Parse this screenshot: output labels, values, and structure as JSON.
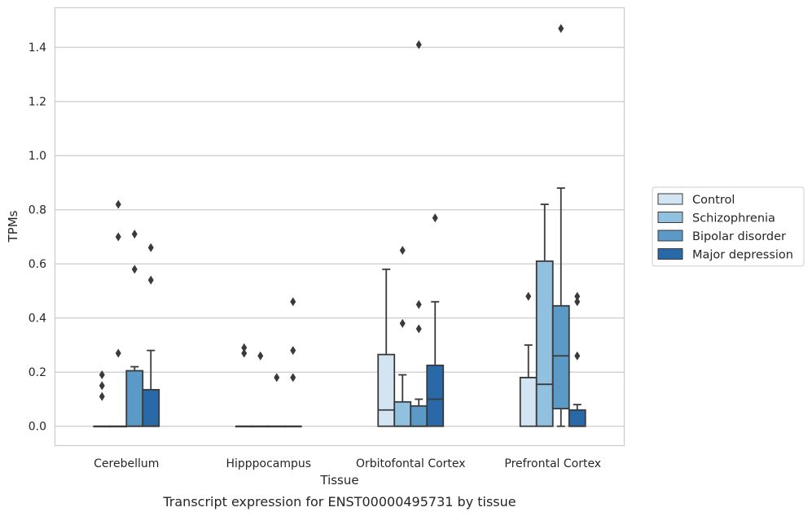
{
  "chart_data": {
    "type": "box",
    "caption": "Transcript expression for ENST00000495731 by tissue",
    "xlabel": "Tissue",
    "ylabel": "TPMs",
    "ylim": [
      -0.07,
      1.545
    ],
    "yticks": [
      "0.0",
      "0.2",
      "0.4",
      "0.6",
      "0.8",
      "1.0",
      "1.2",
      "1.4"
    ],
    "categories": [
      "Cerebellum",
      "Hipppocampus",
      "Orbitofontal Cortex",
      "Prefrontal Cortex"
    ],
    "grid": true,
    "legend_position": "right",
    "series": [
      {
        "name": "Control",
        "color": "#d3e4f3",
        "boxes": [
          {
            "q1": 0,
            "median": 0,
            "q3": 0,
            "whisker_low": 0,
            "whisker_high": 0,
            "outliers": [
              0.19,
              0.15,
              0.11
            ]
          },
          {
            "q1": 0,
            "median": 0,
            "q3": 0,
            "whisker_low": 0,
            "whisker_high": 0,
            "outliers": [
              0.29,
              0.27
            ]
          },
          {
            "q1": 0,
            "median": 0.06,
            "q3": 0.265,
            "whisker_low": 0,
            "whisker_high": 0.58,
            "outliers": []
          },
          {
            "q1": 0,
            "median": 0.18,
            "q3": 0.18,
            "whisker_low": 0,
            "whisker_high": 0.3,
            "outliers": [
              0.48
            ]
          }
        ]
      },
      {
        "name": "Schizophrenia",
        "color": "#92c0df",
        "boxes": [
          {
            "q1": 0,
            "median": 0,
            "q3": 0,
            "whisker_low": 0,
            "whisker_high": 0,
            "outliers": [
              0.82,
              0.7,
              0.27
            ]
          },
          {
            "q1": 0,
            "median": 0,
            "q3": 0,
            "whisker_low": 0,
            "whisker_high": 0,
            "outliers": [
              0.26
            ]
          },
          {
            "q1": 0,
            "median": 0,
            "q3": 0.09,
            "whisker_low": 0,
            "whisker_high": 0.19,
            "outliers": [
              0.65,
              0.38
            ]
          },
          {
            "q1": 0,
            "median": 0.155,
            "q3": 0.61,
            "whisker_low": 0,
            "whisker_high": 0.82,
            "outliers": []
          }
        ]
      },
      {
        "name": "Bipolar disorder",
        "color": "#5b9ac7",
        "boxes": [
          {
            "q1": 0,
            "median": 0,
            "q3": 0.205,
            "whisker_low": 0,
            "whisker_high": 0.22,
            "outliers": [
              0.71,
              0.58
            ]
          },
          {
            "q1": 0,
            "median": 0,
            "q3": 0,
            "whisker_low": 0,
            "whisker_high": 0,
            "outliers": [
              0.18
            ]
          },
          {
            "q1": 0,
            "median": 0,
            "q3": 0.075,
            "whisker_low": 0,
            "whisker_high": 0.1,
            "outliers": [
              1.41,
              0.45,
              0.36
            ]
          },
          {
            "q1": 0.065,
            "median": 0.26,
            "q3": 0.445,
            "whisker_low": 0,
            "whisker_high": 0.88,
            "outliers": [
              1.47
            ]
          }
        ]
      },
      {
        "name": "Major depression",
        "color": "#2a69a8",
        "boxes": [
          {
            "q1": 0,
            "median": 0,
            "q3": 0.135,
            "whisker_low": 0,
            "whisker_high": 0.28,
            "outliers": [
              0.66,
              0.54
            ]
          },
          {
            "q1": 0,
            "median": 0,
            "q3": 0,
            "whisker_low": 0,
            "whisker_high": 0,
            "outliers": [
              0.46,
              0.28,
              0.18
            ]
          },
          {
            "q1": 0,
            "median": 0.1,
            "q3": 0.225,
            "whisker_low": 0,
            "whisker_high": 0.46,
            "outliers": [
              0.77
            ]
          },
          {
            "q1": 0,
            "median": 0,
            "q3": 0.06,
            "whisker_low": 0,
            "whisker_high": 0.08,
            "outliers": [
              0.48,
              0.46,
              0.26
            ]
          }
        ]
      }
    ]
  }
}
